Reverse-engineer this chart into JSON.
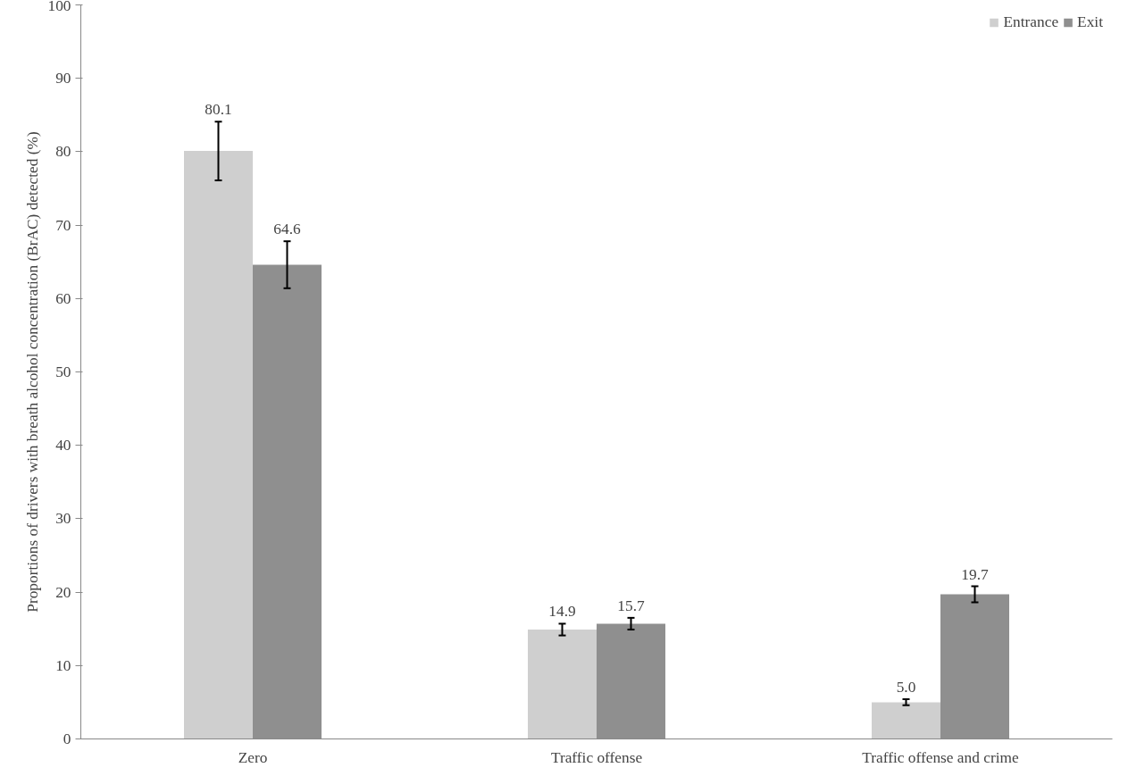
{
  "chart_data": {
    "type": "bar",
    "ylabel": "Proportions of drivers with breath alcohol concentration (BrAC) detected (%)",
    "categories": [
      "Zero",
      "Traffic offense",
      "Traffic offense and crime"
    ],
    "series": [
      {
        "name": "Entrance",
        "color": "#cfcfcf",
        "values": [
          80.1,
          14.9,
          5.0
        ],
        "value_labels": [
          "80.1",
          "14.9",
          "5.0"
        ],
        "errors": [
          4.0,
          0.8,
          0.4
        ]
      },
      {
        "name": "Exit",
        "color": "#8f8f8f",
        "values": [
          64.6,
          15.7,
          19.7
        ],
        "value_labels": [
          "64.6",
          "15.7",
          "19.7"
        ],
        "errors": [
          3.2,
          0.8,
          1.1
        ]
      }
    ],
    "ylim": [
      0,
      100
    ],
    "yticks": [
      0,
      10,
      20,
      30,
      40,
      50,
      60,
      70,
      80,
      90,
      100
    ],
    "grid": false,
    "legend": "top right"
  }
}
